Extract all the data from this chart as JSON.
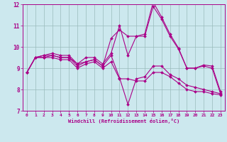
{
  "background_color": "#cce8ee",
  "line_color": "#aa0088",
  "grid_color": "#99bbbb",
  "xlabel": "Windchill (Refroidissement éolien,°C)",
  "xlim": [
    -0.5,
    23.5
  ],
  "ylim": [
    7,
    12
  ],
  "yticks": [
    7,
    8,
    9,
    10,
    11,
    12
  ],
  "xticks": [
    0,
    1,
    2,
    3,
    4,
    5,
    6,
    7,
    8,
    9,
    10,
    11,
    12,
    13,
    14,
    15,
    16,
    17,
    18,
    19,
    20,
    21,
    22,
    23
  ],
  "series": [
    {
      "x": [
        0,
        1,
        2,
        3,
        4,
        5,
        6,
        7,
        8,
        9,
        10,
        11,
        12,
        13,
        14,
        15,
        16,
        17,
        18,
        19,
        20,
        21,
        22,
        23
      ],
      "y": [
        8.8,
        9.5,
        9.6,
        9.7,
        9.6,
        9.6,
        9.2,
        9.5,
        9.5,
        9.2,
        9.7,
        11.0,
        9.6,
        10.5,
        10.6,
        12.1,
        11.4,
        10.6,
        9.95,
        9.0,
        9.0,
        9.15,
        9.1,
        7.9
      ]
    },
    {
      "x": [
        0,
        1,
        2,
        3,
        4,
        5,
        6,
        7,
        8,
        9,
        10,
        11,
        12,
        13,
        14,
        15,
        16,
        17,
        18,
        19,
        20,
        21,
        22,
        23
      ],
      "y": [
        8.8,
        9.5,
        9.6,
        9.6,
        9.5,
        9.5,
        9.2,
        9.3,
        9.4,
        9.1,
        10.4,
        10.8,
        10.5,
        10.5,
        10.5,
        11.9,
        11.3,
        10.5,
        9.9,
        9.0,
        9.0,
        9.1,
        9.0,
        7.8
      ]
    },
    {
      "x": [
        0,
        1,
        2,
        3,
        4,
        5,
        6,
        7,
        8,
        9,
        10,
        11,
        12,
        13,
        14,
        15,
        16,
        17,
        18,
        19,
        20,
        21,
        22,
        23
      ],
      "y": [
        8.8,
        9.5,
        9.5,
        9.6,
        9.5,
        9.5,
        9.1,
        9.3,
        9.4,
        9.1,
        9.6,
        8.55,
        7.3,
        8.5,
        8.6,
        9.1,
        9.1,
        8.7,
        8.5,
        8.2,
        8.1,
        8.0,
        7.9,
        7.8
      ]
    },
    {
      "x": [
        0,
        1,
        2,
        3,
        4,
        5,
        6,
        7,
        8,
        9,
        10,
        11,
        12,
        13,
        14,
        15,
        16,
        17,
        18,
        19,
        20,
        21,
        22,
        23
      ],
      "y": [
        8.8,
        9.5,
        9.5,
        9.5,
        9.4,
        9.4,
        9.0,
        9.2,
        9.3,
        9.0,
        9.3,
        8.5,
        8.5,
        8.4,
        8.4,
        8.8,
        8.8,
        8.6,
        8.3,
        8.0,
        7.9,
        7.9,
        7.8,
        7.75
      ]
    }
  ]
}
